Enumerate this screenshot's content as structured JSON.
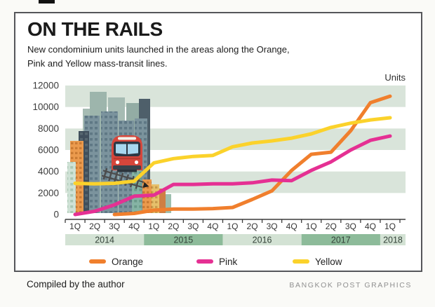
{
  "page": {
    "title": "ON THE RAILS",
    "subtitle": "New condominium units launched in the areas along the Orange,\nPink and Yellow mass-transit lines.",
    "units_label": "Units",
    "footer_left": "Compiled by the author",
    "footer_right": "BANGKOK POST GRAPHICS"
  },
  "icons": [
    {
      "name": "city-skyline-illustration",
      "desc": "stylized city buildings behind the chart"
    },
    {
      "name": "train-icon",
      "desc": "red commuter train front view"
    },
    {
      "name": "railway-track-icon",
      "desc": "diagonal railway track with ties and arrow tip"
    }
  ],
  "colors": {
    "band": "#d9e4da",
    "year_light": "#d3e2d4",
    "year_dark": "#8dbb9a",
    "axis": "#3b3b3b",
    "card_border": "#55565a",
    "orange": "#f07f2d",
    "pink": "#e53093",
    "yellow": "#fbd22b"
  },
  "chart_data": {
    "type": "line",
    "title": "ON THE RAILS",
    "subtitle": "New condominium units launched in the areas along the Orange, Pink and Yellow mass-transit lines.",
    "ylabel": "Units",
    "xlabel": "",
    "ylim": [
      0,
      12000
    ],
    "yticks": [
      0,
      2000,
      4000,
      6000,
      8000,
      10000,
      12000
    ],
    "bands": [
      [
        2000,
        4000
      ],
      [
        6000,
        8000
      ],
      [
        10000,
        12000
      ]
    ],
    "grid": "alternating horizontal bands, no vertical gridlines",
    "legend_position": "bottom",
    "x": [
      "1Q",
      "2Q",
      "3Q",
      "4Q",
      "1Q",
      "2Q",
      "3Q",
      "4Q",
      "1Q",
      "2Q",
      "3Q",
      "4Q",
      "1Q",
      "2Q",
      "3Q",
      "4Q",
      "1Q"
    ],
    "year_groups": [
      {
        "label": "2014",
        "span": 4
      },
      {
        "label": "2015",
        "span": 4
      },
      {
        "label": "2016",
        "span": 4
      },
      {
        "label": "2017",
        "span": 4
      },
      {
        "label": "2018",
        "span": 1
      }
    ],
    "series": [
      {
        "name": "Orange",
        "color": "#f07f2d",
        "values": [
          null,
          null,
          0,
          100,
          400,
          500,
          500,
          550,
          650,
          1400,
          2200,
          4100,
          5600,
          5800,
          7800,
          10400,
          11000
        ]
      },
      {
        "name": "Pink",
        "color": "#e53093",
        "values": [
          0,
          300,
          900,
          1700,
          1800,
          2800,
          2800,
          2850,
          2850,
          2950,
          3200,
          3150,
          4100,
          4900,
          6000,
          6900,
          7300
        ]
      },
      {
        "name": "Yellow",
        "color": "#fbd22b",
        "values": [
          2900,
          2850,
          2900,
          3100,
          4800,
          5200,
          5400,
          5500,
          6300,
          6650,
          6850,
          7100,
          7500,
          8100,
          8500,
          8800,
          9000
        ]
      }
    ]
  }
}
